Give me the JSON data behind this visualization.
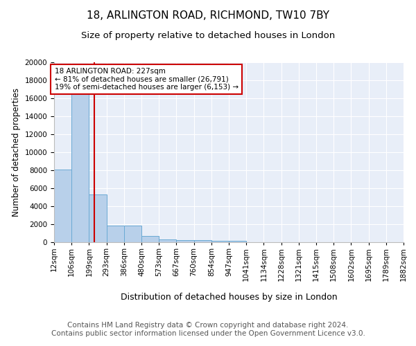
{
  "title1": "18, ARLINGTON ROAD, RICHMOND, TW10 7BY",
  "title2": "Size of property relative to detached houses in London",
  "xlabel": "Distribution of detached houses by size in London",
  "ylabel": "Number of detached properties",
  "bin_labels": [
    "12sqm",
    "106sqm",
    "199sqm",
    "293sqm",
    "386sqm",
    "480sqm",
    "573sqm",
    "667sqm",
    "760sqm",
    "854sqm",
    "947sqm",
    "1041sqm",
    "1134sqm",
    "1228sqm",
    "1321sqm",
    "1415sqm",
    "1508sqm",
    "1602sqm",
    "1695sqm",
    "1789sqm",
    "1882sqm"
  ],
  "bar_heights": [
    8100,
    16500,
    5300,
    1850,
    1850,
    700,
    310,
    240,
    210,
    170,
    150,
    0,
    0,
    0,
    0,
    0,
    0,
    0,
    0,
    0
  ],
  "bar_color": "#b8d0ea",
  "bar_edge_color": "#6aaad4",
  "red_line_bin": 1.85,
  "annotation_text": "18 ARLINGTON ROAD: 227sqm\n← 81% of detached houses are smaller (26,791)\n19% of semi-detached houses are larger (6,153) →",
  "annotation_box_color": "#ffffff",
  "annotation_border_color": "#cc0000",
  "ylim": [
    0,
    20000
  ],
  "yticks": [
    0,
    2000,
    4000,
    6000,
    8000,
    10000,
    12000,
    14000,
    16000,
    18000,
    20000
  ],
  "background_color": "#e8eef8",
  "grid_color": "#ffffff",
  "footer_text": "Contains HM Land Registry data © Crown copyright and database right 2024.\nContains public sector information licensed under the Open Government Licence v3.0.",
  "title1_fontsize": 11,
  "title2_fontsize": 9.5,
  "xlabel_fontsize": 9,
  "ylabel_fontsize": 8.5,
  "tick_fontsize": 7.5,
  "footer_fontsize": 7.5
}
